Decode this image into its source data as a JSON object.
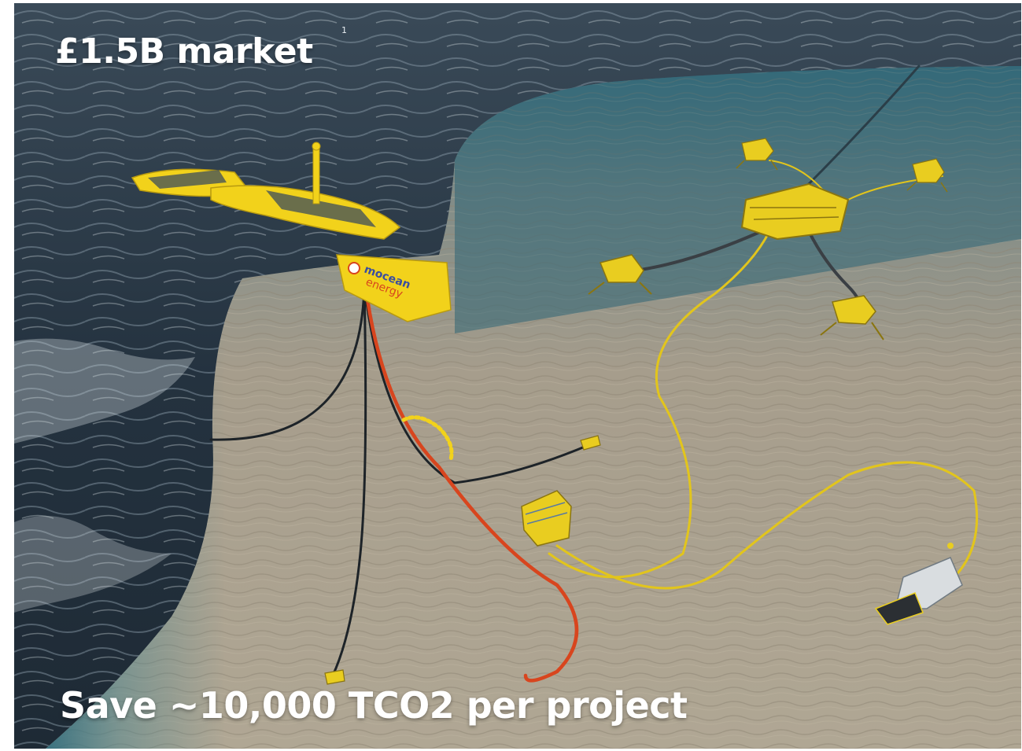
{
  "overlay": {
    "headline": "£1.5B market",
    "footnote_marker": "1",
    "subline": "Save ~10,000 TCO2 per project"
  },
  "device": {
    "brand_line1": "mocean",
    "brand_line2": "energy"
  },
  "colors": {
    "accent_yellow": "#f2d21b",
    "cable_red": "#d8451e",
    "sea_dark": "#243442",
    "seabed": "#a79d8c",
    "water_teal": "#2f6f80"
  }
}
